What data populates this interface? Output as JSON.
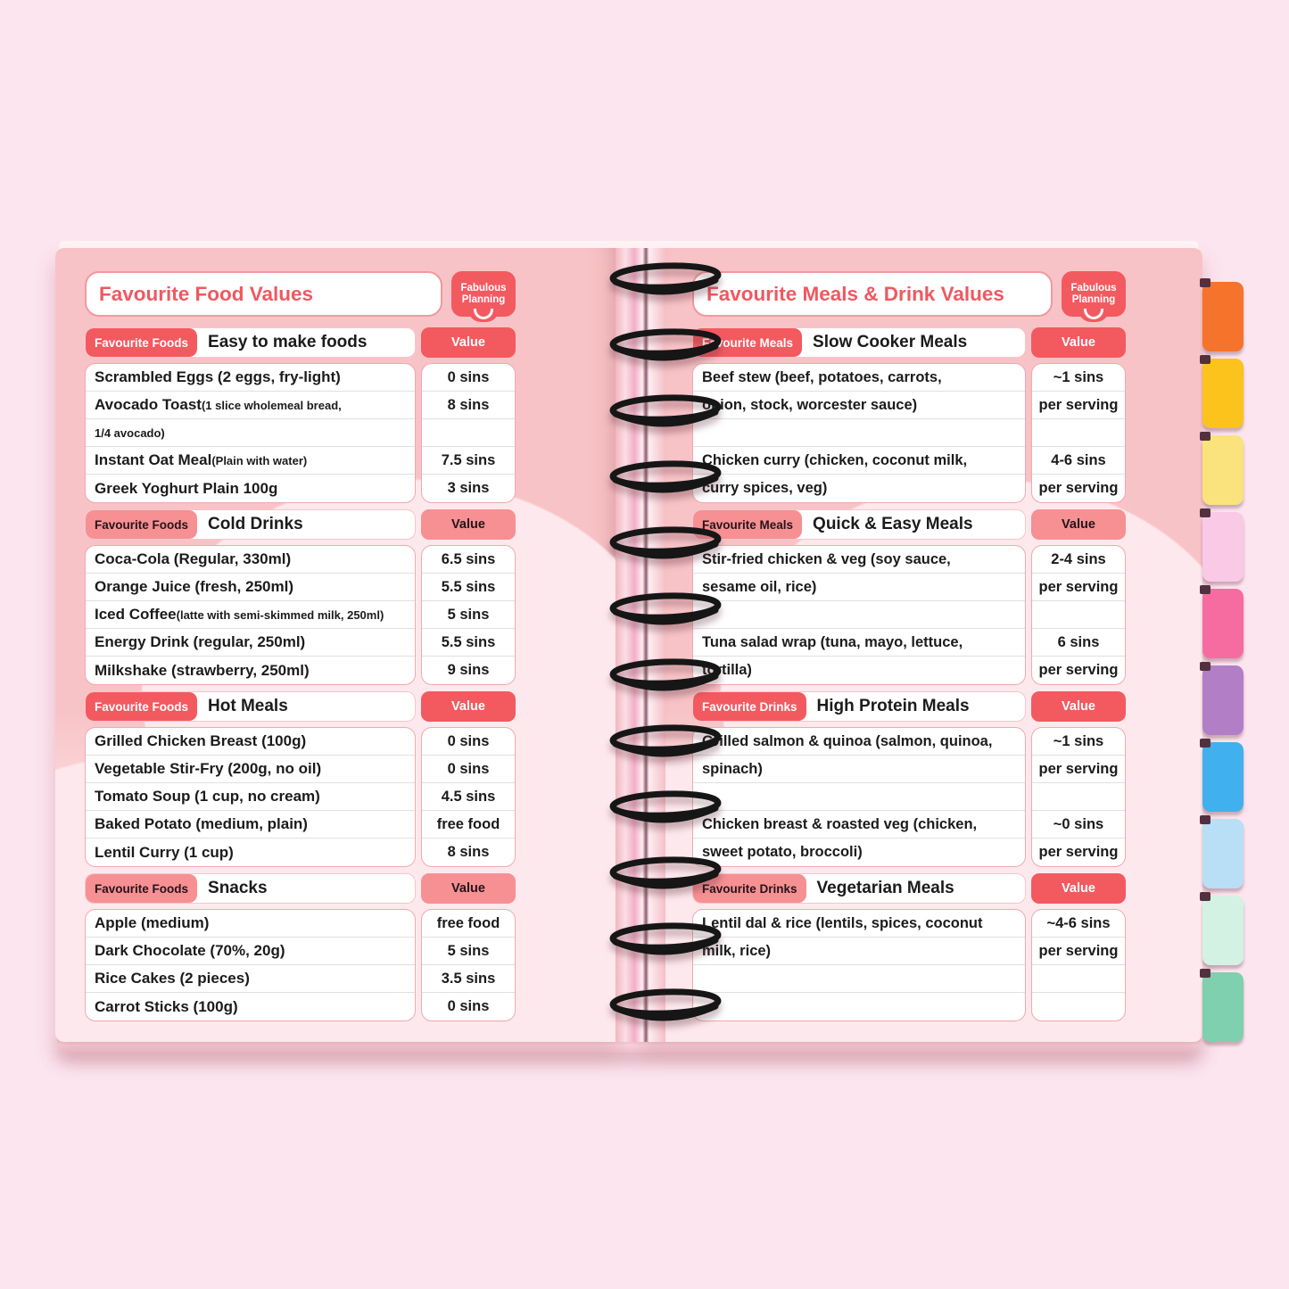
{
  "canvas": {
    "background": "#fce5ef"
  },
  "colors": {
    "page_salmon": "#f8c3c6",
    "page_light": "#fde9ed",
    "accent_red": "#f25a60",
    "accent_coral": "#f69093",
    "title_text": "#ef5860",
    "row_text": "#1b1b1b"
  },
  "logo": {
    "line1": "Fabulous",
    "line2": "Planning"
  },
  "left_page": {
    "title": "Favourite Food Values",
    "sections": [
      {
        "badge": "Favourite Foods",
        "name": "Easy to make foods",
        "value_header": "Value",
        "badge_style": "dark",
        "value_style": "dark",
        "rows": [
          {
            "main": "Scrambled Eggs (2 eggs, fry-light)",
            "small": "",
            "value": "0 sins"
          },
          {
            "main": "Avocado Toast ",
            "small": "(1 slice wholemeal bread,",
            "value": "8 sins"
          },
          {
            "main": "",
            "small": "1/4 avocado)",
            "value": ""
          },
          {
            "main": "Instant Oat Meal ",
            "small": "(Plain with water)",
            "value": "7.5 sins"
          },
          {
            "main": "Greek Yoghurt Plain 100g",
            "small": "",
            "value": "3 sins"
          }
        ]
      },
      {
        "badge": "Favourite Foods",
        "name": "Cold Drinks",
        "value_header": "Value",
        "badge_style": "light",
        "value_style": "light",
        "rows": [
          {
            "main": "Coca-Cola (Regular, 330ml)",
            "small": "",
            "value": "6.5 sins"
          },
          {
            "main": "Orange Juice (fresh, 250ml)",
            "small": "",
            "value": "5.5 sins"
          },
          {
            "main": "Iced Coffee ",
            "small": "(latte with semi-skimmed milk, 250ml)",
            "value": "5 sins"
          },
          {
            "main": "Energy Drink (regular, 250ml)",
            "small": "",
            "value": "5.5 sins"
          },
          {
            "main": "Milkshake (strawberry, 250ml)",
            "small": "",
            "value": "9 sins"
          }
        ]
      },
      {
        "badge": "Favourite Foods",
        "name": "Hot Meals",
        "value_header": "Value",
        "badge_style": "dark",
        "value_style": "dark",
        "rows": [
          {
            "main": "Grilled Chicken Breast (100g)",
            "small": "",
            "value": "0 sins"
          },
          {
            "main": "Vegetable Stir-Fry (200g, no oil)",
            "small": "",
            "value": "0 sins"
          },
          {
            "main": "Tomato Soup (1 cup, no cream)",
            "small": "",
            "value": "4.5 sins"
          },
          {
            "main": "Baked Potato (medium, plain)",
            "small": "",
            "value": "free food"
          },
          {
            "main": "Lentil Curry (1 cup)",
            "small": "",
            "value": "8 sins"
          }
        ]
      },
      {
        "badge": "Favourite Foods",
        "name": "Snacks",
        "value_header": "Value",
        "badge_style": "light",
        "value_style": "light",
        "rows": [
          {
            "main": "Apple (medium)",
            "small": "",
            "value": "free food"
          },
          {
            "main": "Dark Chocolate (70%, 20g)",
            "small": "",
            "value": "5 sins"
          },
          {
            "main": "Rice Cakes (2 pieces)",
            "small": "",
            "value": "3.5 sins"
          },
          {
            "main": "Carrot Sticks (100g)",
            "small": "",
            "value": "0 sins"
          }
        ]
      }
    ]
  },
  "right_page": {
    "title": "Favourite Meals & Drink Values",
    "sections": [
      {
        "badge": "Favourite Meals",
        "name": "Slow Cooker Meals",
        "value_header": "Value",
        "badge_style": "dark",
        "value_style": "dark",
        "rows": [
          {
            "main": "Beef stew (beef, potatoes, carrots,",
            "small": "",
            "value": "~1 sins"
          },
          {
            "main": "onion, stock, worcester sauce)",
            "small": "",
            "value": "per serving"
          },
          {
            "main": "",
            "small": "",
            "value": ""
          },
          {
            "main": "Chicken curry (chicken, coconut milk,",
            "small": "",
            "value": "4-6 sins"
          },
          {
            "main": "curry spices, veg)",
            "small": "",
            "value": "per serving"
          }
        ]
      },
      {
        "badge": "Favourite Meals",
        "name": "Quick & Easy Meals",
        "value_header": "Value",
        "badge_style": "light",
        "value_style": "light",
        "rows": [
          {
            "main": "Stir-fried chicken & veg (soy sauce,",
            "small": "",
            "value": "2-4 sins"
          },
          {
            "main": "sesame oil, rice)",
            "small": "",
            "value": "per serving"
          },
          {
            "main": "",
            "small": "",
            "value": ""
          },
          {
            "main": "Tuna salad wrap (tuna, mayo, lettuce,",
            "small": "",
            "value": "6 sins"
          },
          {
            "main": "tortilla)",
            "small": "",
            "value": "per serving"
          }
        ]
      },
      {
        "badge": "Favourite Drinks",
        "name": "High Protein Meals",
        "value_header": "Value",
        "badge_style": "dark",
        "value_style": "dark",
        "rows": [
          {
            "main": "Grilled salmon & quinoa (salmon, quinoa,",
            "small": "",
            "value": "~1 sins"
          },
          {
            "main": "spinach)",
            "small": "",
            "value": "per serving"
          },
          {
            "main": "",
            "small": "",
            "value": ""
          },
          {
            "main": "Chicken breast & roasted veg (chicken,",
            "small": "",
            "value": "~0 sins"
          },
          {
            "main": "sweet potato, broccoli)",
            "small": "",
            "value": "per serving"
          }
        ]
      },
      {
        "badge": "Favourite Drinks",
        "name": "Vegetarian Meals",
        "value_header": "Value",
        "badge_style": "light",
        "value_style": "dark",
        "rows": [
          {
            "main": "Lentil dal & rice (lentils, spices, coconut",
            "small": "",
            "value": "~4-6 sins"
          },
          {
            "main": "milk, rice)",
            "small": "",
            "value": "per serving"
          },
          {
            "main": "",
            "small": "",
            "value": ""
          },
          {
            "main": "",
            "small": "",
            "value": ""
          }
        ]
      }
    ]
  },
  "tabs": [
    {
      "label": "tab-1",
      "color": "#f5732b"
    },
    {
      "label": "tab-2",
      "color": "#fbc31c"
    },
    {
      "label": "tab-3",
      "color": "#fae37c"
    },
    {
      "label": "tab-4",
      "color": "#f9c9e5"
    },
    {
      "label": "tab-5",
      "color": "#f76ca0"
    },
    {
      "label": "tab-6",
      "color": "#b27fc7"
    },
    {
      "label": "tab-7",
      "color": "#41b0ee"
    },
    {
      "label": "tab-8",
      "color": "#b8dff6"
    },
    {
      "label": "tab-9",
      "color": "#d4f2e4"
    },
    {
      "label": "tab-10",
      "color": "#7fd0ae"
    }
  ]
}
